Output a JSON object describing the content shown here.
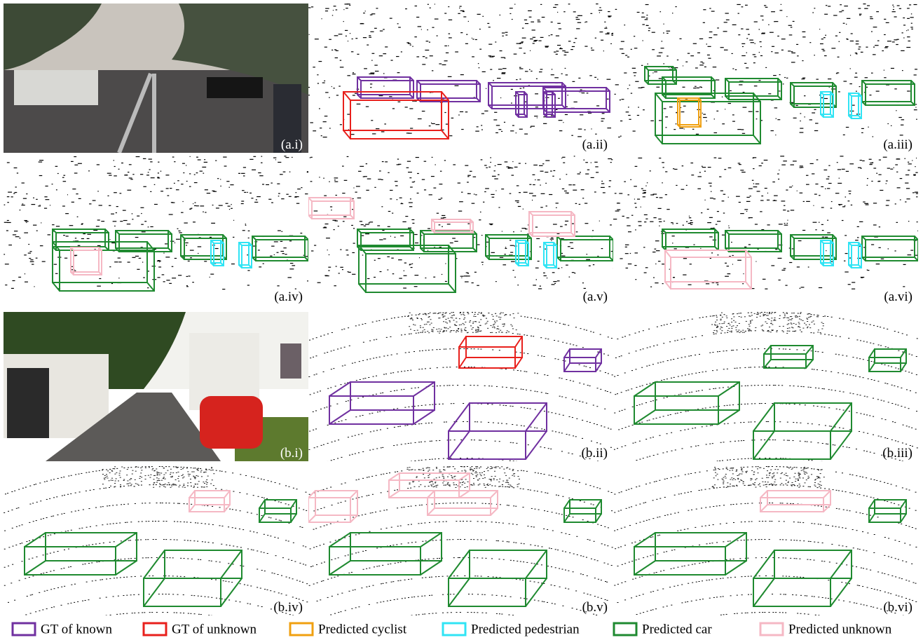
{
  "panels": [
    "(a.i)",
    "(a.ii)",
    "(a.iii)",
    "(a.iv)",
    "(a.v)",
    "(a.vi)",
    "(b.i)",
    "(b.ii)",
    "(b.iii)",
    "(b.iv)",
    "(b.v)",
    "(b.vi)"
  ],
  "legend": [
    {
      "name": "GT of known",
      "color": "#7030a0"
    },
    {
      "name": "GT of unknown",
      "color": "#e8201c"
    },
    {
      "name": "Predicted cyclist",
      "color": "#f0a010"
    },
    {
      "name": "Predicted pedestrian",
      "color": "#30e4f4"
    },
    {
      "name": "Predicted car",
      "color": "#1f8a30"
    },
    {
      "name": "Predicted unknown",
      "color": "#f5b8c4"
    }
  ]
}
